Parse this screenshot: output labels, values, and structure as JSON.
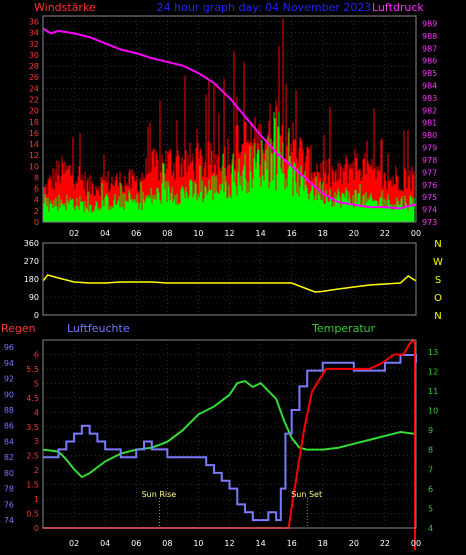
{
  "title": "24 hour graph day: 04 November 2023",
  "labels": {
    "windstaerke": "Windstärke",
    "luftdruck": "Luftdruck",
    "regen": "Regen",
    "luftfeuchte": "Luftfeuchte",
    "temperatur": "Temperatur",
    "sun_rise": "Sun Rise",
    "sun_set": "Sun Set"
  },
  "colors": {
    "background": "#000000",
    "wind_gust": "#ff0000",
    "wind_avg": "#00ff00",
    "pressure": "#ff00ff",
    "direction": "#ffff00",
    "rain": "#ff0000",
    "humidity": "#7b7bff",
    "temperature": "#33dd33",
    "title": "#2222ff",
    "left_axis_wind": "#ff3333",
    "right_axis_pressure": "#ff33ff",
    "humidity_axis": "#7777ff",
    "temperature_axis": "#33cc33",
    "grid": "#555555"
  },
  "x_ticks": [
    "02",
    "04",
    "06",
    "08",
    "10",
    "12",
    "14",
    "16",
    "18",
    "20",
    "22",
    "00"
  ],
  "chart_data": [
    {
      "type": "line",
      "panel": "wind_pressure",
      "ylabel_left": "Windstärke",
      "ylabel_right": "Luftdruck",
      "yticks_left": [
        0,
        2,
        4,
        6,
        8,
        10,
        12,
        14,
        16,
        18,
        20,
        22,
        24,
        26,
        28,
        30,
        32,
        34,
        36
      ],
      "ylim_left": [
        0,
        37
      ],
      "yticks_right": [
        973,
        974,
        975,
        976,
        977,
        978,
        979,
        980,
        981,
        982,
        983,
        984,
        985,
        986,
        987,
        988,
        989
      ],
      "ylim_right": [
        973,
        989.6
      ],
      "xlim": [
        0,
        24
      ],
      "series": [
        {
          "key": "pressure",
          "x": [
            0,
            0.5,
            1,
            1.5,
            2,
            3,
            4,
            5,
            6,
            7,
            8,
            9,
            10,
            11,
            12,
            13,
            14,
            15,
            16,
            17,
            18,
            19,
            20,
            21,
            22,
            23,
            23.5,
            24
          ],
          "values": [
            988.6,
            988.2,
            988.4,
            988.3,
            988.2,
            987.9,
            987.4,
            986.9,
            986.6,
            986.2,
            985.9,
            985.6,
            985.0,
            984.2,
            983.0,
            981.5,
            980.0,
            978.6,
            977.5,
            976.4,
            975.3,
            974.6,
            974.4,
            974.2,
            974.2,
            974.1,
            974.3,
            974.4
          ]
        },
        {
          "key": "wind_gust_envelope",
          "x": [
            0,
            1,
            2,
            3,
            4,
            5,
            6,
            7,
            8,
            9,
            10,
            11,
            12,
            13,
            14,
            15,
            16,
            17,
            18,
            19,
            20,
            21,
            22,
            23,
            24
          ],
          "values": [
            6,
            10,
            10,
            7,
            8,
            8,
            8,
            11,
            12,
            12,
            12,
            12,
            14,
            16,
            16,
            20,
            16,
            12,
            10,
            9,
            12,
            10,
            8,
            9,
            9
          ]
        },
        {
          "key": "wind_avg_envelope",
          "x": [
            0,
            1,
            2,
            3,
            4,
            5,
            6,
            7,
            8,
            9,
            10,
            11,
            12,
            13,
            14,
            15,
            16,
            17,
            18,
            19,
            20,
            21,
            22,
            23,
            24
          ],
          "values": [
            3,
            4,
            4,
            3,
            4,
            4,
            4,
            5,
            6,
            6,
            6,
            7,
            8,
            10,
            12,
            11,
            9,
            7,
            6,
            5,
            5,
            4,
            4,
            4,
            4
          ]
        }
      ]
    },
    {
      "type": "line",
      "panel": "wind_direction",
      "yticks": [
        0,
        90,
        180,
        270,
        360
      ],
      "ylim": [
        0,
        360
      ],
      "compass_labels": [
        "N",
        "W",
        "S",
        "O",
        "N"
      ],
      "xlim": [
        0,
        24
      ],
      "series": [
        {
          "key": "direction",
          "x": [
            0,
            0.3,
            1,
            2,
            3,
            4,
            5,
            6,
            7,
            8,
            9,
            10,
            11,
            12,
            13,
            14,
            15,
            16,
            17,
            17.5,
            18,
            19,
            20,
            21,
            22,
            23,
            23.5,
            24
          ],
          "values": [
            170,
            200,
            185,
            165,
            160,
            160,
            165,
            165,
            165,
            160,
            160,
            160,
            160,
            160,
            160,
            160,
            160,
            160,
            130,
            115,
            118,
            130,
            140,
            150,
            155,
            160,
            195,
            170
          ]
        }
      ]
    },
    {
      "type": "line",
      "panel": "rain_humidity_temperature",
      "ylabel_left_red": "Regen",
      "ylabel_left_blue": "Luftfeuchte",
      "ylabel_right": "Temperatur",
      "yticks_rain": [
        0,
        0.5,
        1,
        1.5,
        2,
        2.5,
        3,
        3.5,
        4,
        4.5,
        5,
        5.5,
        6
      ],
      "ylim_rain": [
        0,
        6.5
      ],
      "yticks_humidity": [
        74,
        76,
        78,
        80,
        82,
        84,
        86,
        88,
        90,
        92,
        94,
        96
      ],
      "ylim_humidity": [
        73,
        96.9
      ],
      "yticks_temperature": [
        4,
        5,
        6,
        7,
        8,
        9,
        10,
        11,
        12,
        13
      ],
      "ylim_temperature": [
        4,
        13.6
      ],
      "xlim": [
        0,
        24
      ],
      "markers": [
        {
          "label": "Sun Rise",
          "x": 7.5
        },
        {
          "label": "Sun Set",
          "x": 17.0
        }
      ],
      "series": [
        {
          "key": "rain",
          "x": [
            0,
            15.8,
            16.2,
            16.8,
            17.3,
            18.2,
            19,
            21,
            21.8,
            22.6,
            23.2,
            23.5,
            23.8,
            24
          ],
          "values": [
            0,
            0,
            1.4,
            3.4,
            4.7,
            5.5,
            5.5,
            5.5,
            5.7,
            6.0,
            6.0,
            6.3,
            6.5,
            6.3
          ]
        },
        {
          "key": "humidity",
          "x": [
            0,
            1,
            1.5,
            2,
            2.5,
            3,
            3.5,
            4,
            5,
            6,
            6.5,
            7,
            8,
            9,
            10,
            10.5,
            11,
            11.5,
            12,
            12.5,
            13,
            13.5,
            14,
            14.5,
            15,
            15.3,
            15.6,
            16,
            16.5,
            17,
            18,
            19,
            20,
            21,
            22,
            23,
            23.5,
            24
          ],
          "values": [
            82,
            83,
            84,
            85,
            86,
            85,
            84,
            83,
            82,
            83,
            84,
            83,
            82,
            82,
            82,
            81,
            80,
            79,
            78,
            76,
            75,
            74,
            74,
            75,
            74,
            78,
            85,
            88,
            91,
            93,
            94,
            94,
            93,
            93,
            94,
            95,
            95,
            94
          ]
        },
        {
          "key": "temperature",
          "x": [
            0,
            1,
            1.5,
            2,
            2.5,
            3,
            4,
            5,
            6,
            7,
            8,
            9,
            10,
            11,
            12,
            12.5,
            13,
            13.5,
            14,
            14.5,
            15,
            15.5,
            16,
            16.5,
            17,
            18,
            19,
            20,
            21,
            22,
            23,
            24
          ],
          "values": [
            8.0,
            7.9,
            7.5,
            7.0,
            6.6,
            6.8,
            7.4,
            7.8,
            8.0,
            8.1,
            8.4,
            9.0,
            9.8,
            10.2,
            10.8,
            11.4,
            11.5,
            11.2,
            11.4,
            11.0,
            10.6,
            9.5,
            8.6,
            8.1,
            8.0,
            8.0,
            8.1,
            8.3,
            8.5,
            8.7,
            8.9,
            8.8
          ]
        }
      ]
    }
  ]
}
